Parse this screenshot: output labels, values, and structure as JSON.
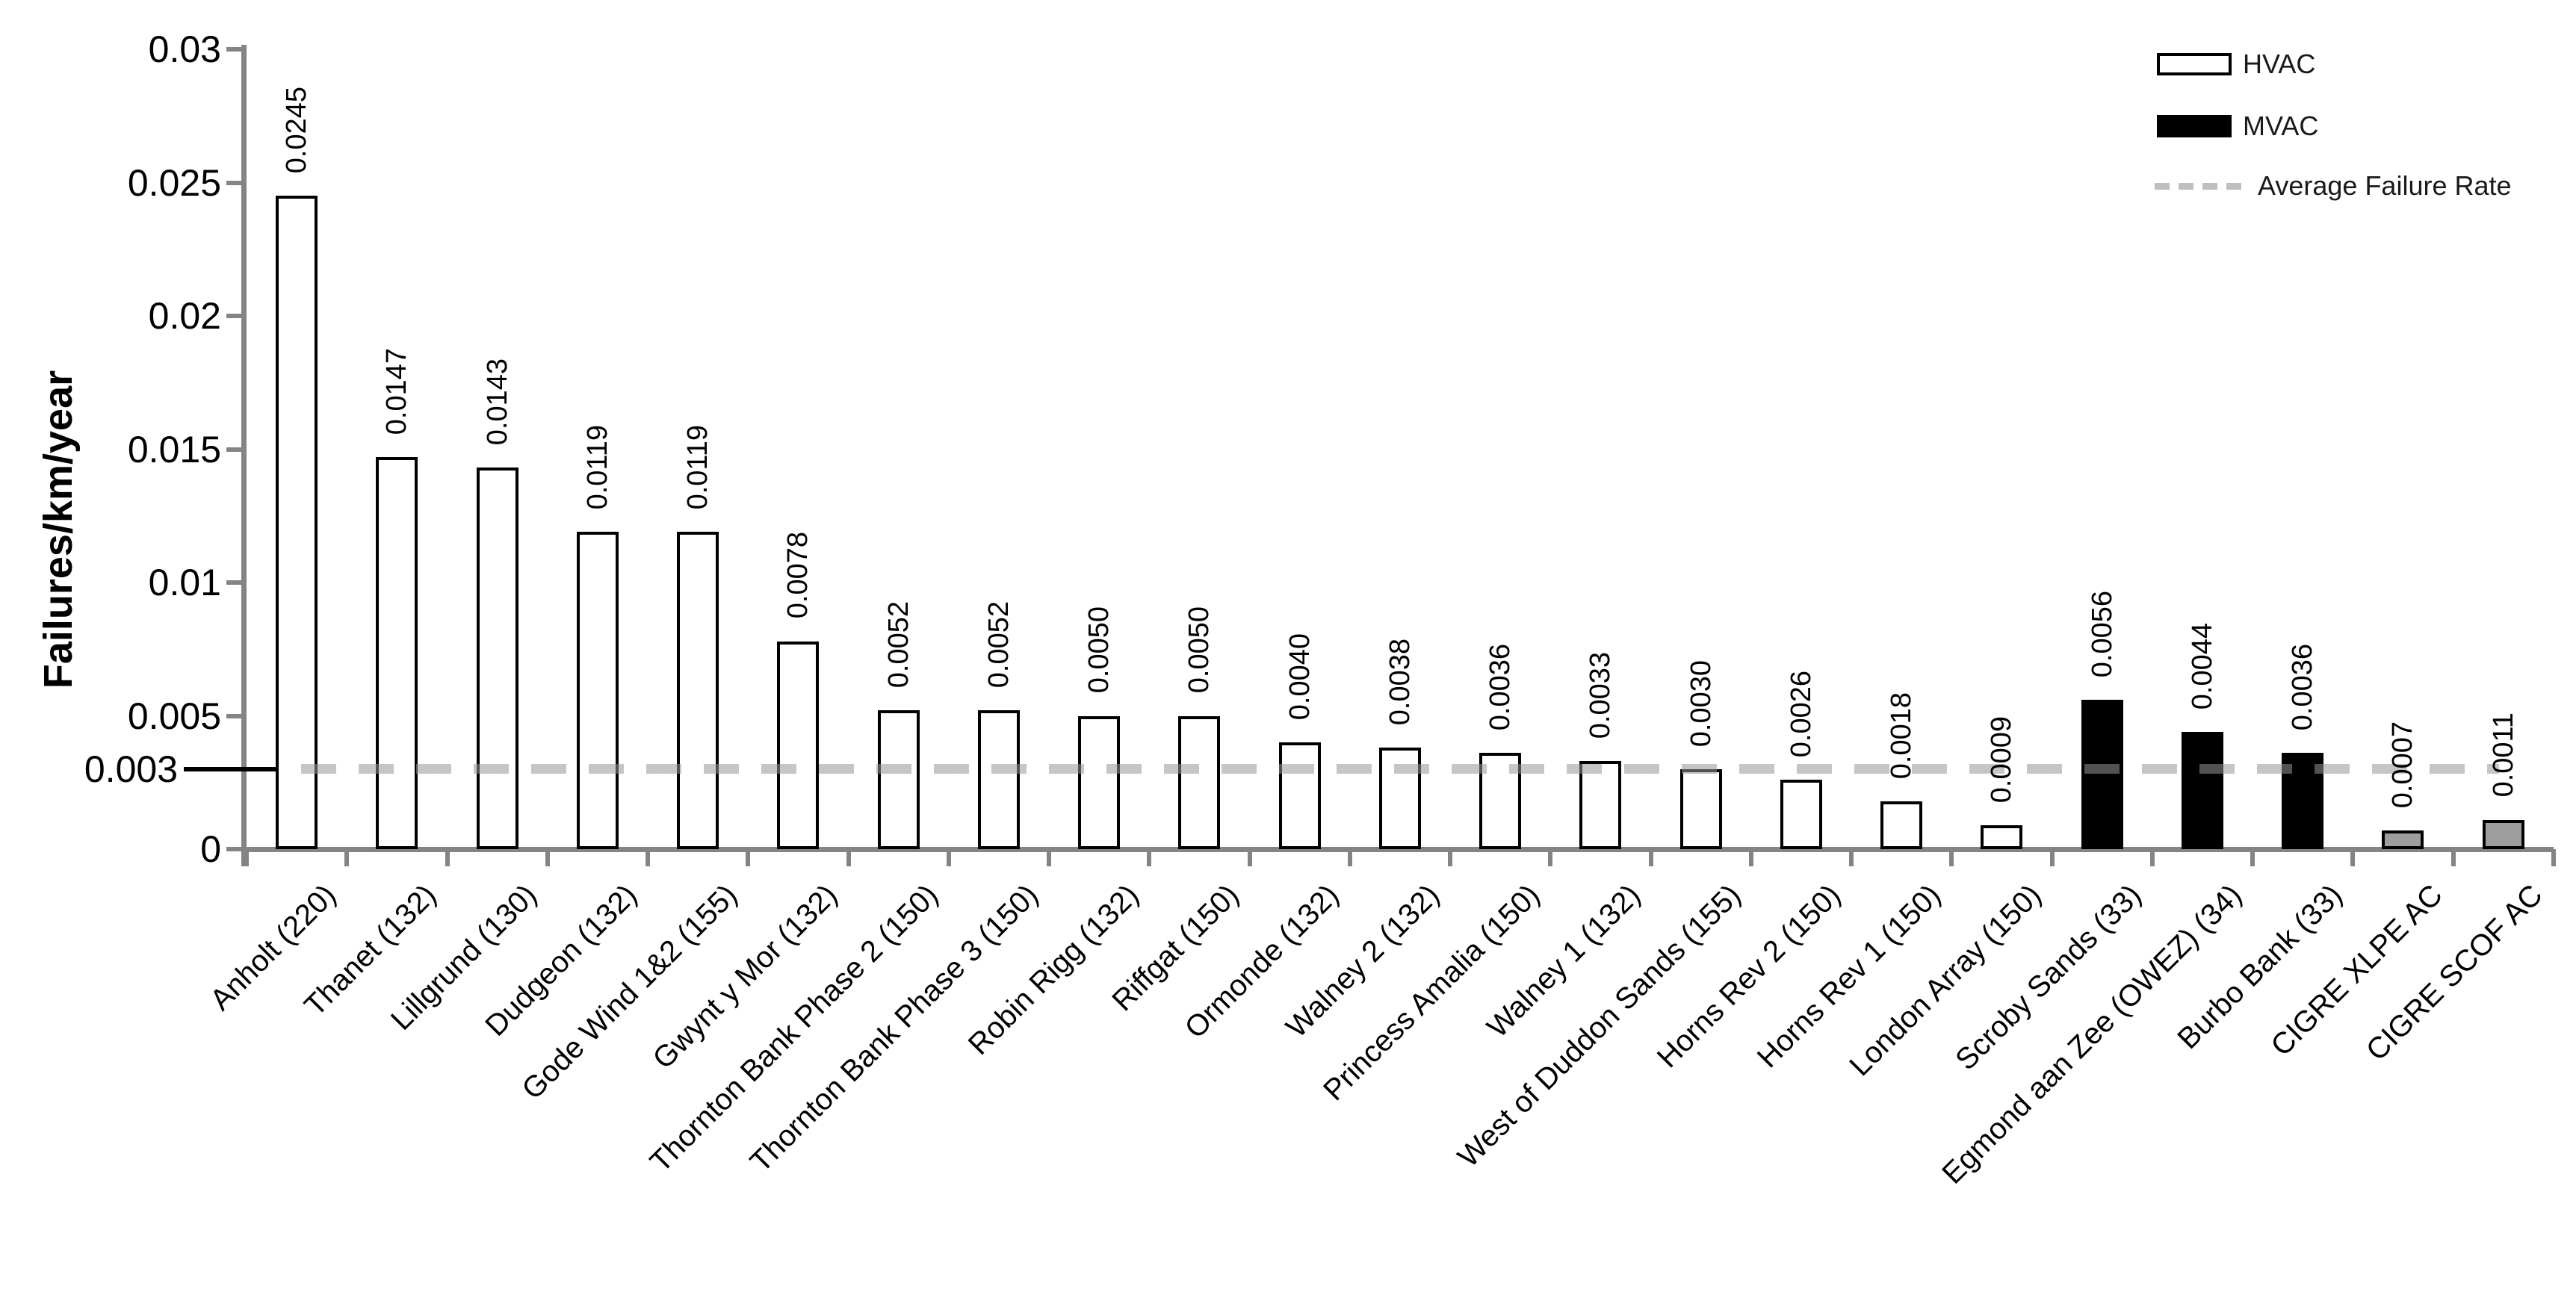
{
  "chart_data": {
    "type": "bar",
    "title": "",
    "xlabel": "",
    "ylabel": "Failures/km/year",
    "ylim": [
      0,
      0.03
    ],
    "grid": false,
    "legend_position": "top-right",
    "yticks": [
      {
        "value": 0.03,
        "label": "0.03",
        "special": false
      },
      {
        "value": 0.025,
        "label": "0.025",
        "special": false
      },
      {
        "value": 0.02,
        "label": "0.02",
        "special": false
      },
      {
        "value": 0.015,
        "label": "0.015",
        "special": false
      },
      {
        "value": 0.01,
        "label": "0.01",
        "special": false
      },
      {
        "value": 0.005,
        "label": "0.005",
        "special": false
      },
      {
        "value": 0.003,
        "label": "0.003",
        "special": true
      },
      {
        "value": 0,
        "label": "0",
        "special": false
      }
    ],
    "average_line": {
      "value": 0.003,
      "label": "0.003"
    },
    "bars": [
      {
        "category": "Anholt (220)",
        "value": 0.0245,
        "label": "0.0245",
        "group": "HVAC"
      },
      {
        "category": "Thanet (132)",
        "value": 0.0147,
        "label": "0.0147",
        "group": "HVAC"
      },
      {
        "category": "Lillgrund (130)",
        "value": 0.0143,
        "label": "0.0143",
        "group": "HVAC"
      },
      {
        "category": "Dudgeon (132)",
        "value": 0.0119,
        "label": "0.0119",
        "group": "HVAC"
      },
      {
        "category": "Gode Wind 1&2 (155)",
        "value": 0.0119,
        "label": "0.0119",
        "group": "HVAC"
      },
      {
        "category": "Gwynt y Mor (132)",
        "value": 0.0078,
        "label": "0.0078",
        "group": "HVAC"
      },
      {
        "category": "Thornton Bank Phase 2 (150)",
        "value": 0.0052,
        "label": "0.0052",
        "group": "HVAC"
      },
      {
        "category": "Thornton Bank Phase 3 (150)",
        "value": 0.0052,
        "label": "0.0052",
        "group": "HVAC"
      },
      {
        "category": "Robin Rigg (132)",
        "value": 0.005,
        "label": "0.0050",
        "group": "HVAC"
      },
      {
        "category": "Riffgat (150)",
        "value": 0.005,
        "label": "0.0050",
        "group": "HVAC"
      },
      {
        "category": "Ormonde (132)",
        "value": 0.004,
        "label": "0.0040",
        "group": "HVAC"
      },
      {
        "category": "Walney 2 (132)",
        "value": 0.0038,
        "label": "0.0038",
        "group": "HVAC"
      },
      {
        "category": "Princess Amalia (150)",
        "value": 0.0036,
        "label": "0.0036",
        "group": "HVAC"
      },
      {
        "category": "Walney 1 (132)",
        "value": 0.0033,
        "label": "0.0033",
        "group": "HVAC"
      },
      {
        "category": "West of Duddon Sands (155)",
        "value": 0.003,
        "label": "0.0030",
        "group": "HVAC"
      },
      {
        "category": "Horns Rev 2 (150)",
        "value": 0.0026,
        "label": "0.0026",
        "group": "HVAC"
      },
      {
        "category": "Horns Rev 1 (150)",
        "value": 0.0018,
        "label": "0.0018",
        "group": "HVAC"
      },
      {
        "category": "London Array (150)",
        "value": 0.0009,
        "label": "0.0009",
        "group": "HVAC"
      },
      {
        "category": "Scroby Sands (33)",
        "value": 0.0056,
        "label": "0.0056",
        "group": "MVAC"
      },
      {
        "category": "Egmond aan Zee (OWEZ) (34)",
        "value": 0.0044,
        "label": "0.0044",
        "group": "MVAC"
      },
      {
        "category": "Burbo Bank (33)",
        "value": 0.0036,
        "label": "0.0036",
        "group": "MVAC"
      },
      {
        "category": "CIGRE XLPE AC",
        "value": 0.0007,
        "label": "0.0007",
        "group": "REF"
      },
      {
        "category": "CIGRE SCOF AC",
        "value": 0.0011,
        "label": "0.0011",
        "group": "REF"
      }
    ],
    "legend": [
      {
        "label": "HVAC",
        "swatch": "white-bar"
      },
      {
        "label": "MVAC",
        "swatch": "black-bar"
      },
      {
        "label": "Average Failure Rate",
        "swatch": "gray-dashed-line"
      }
    ],
    "colors": {
      "hvac_fill": "#ffffff",
      "mvac_fill": "#000000",
      "reference_fill": "#9e9e9e",
      "bar_border": "#000000",
      "axis": "#848484",
      "average_dash": "#969696",
      "legend_dash": "#bfbfbf",
      "text": "#000000"
    }
  }
}
